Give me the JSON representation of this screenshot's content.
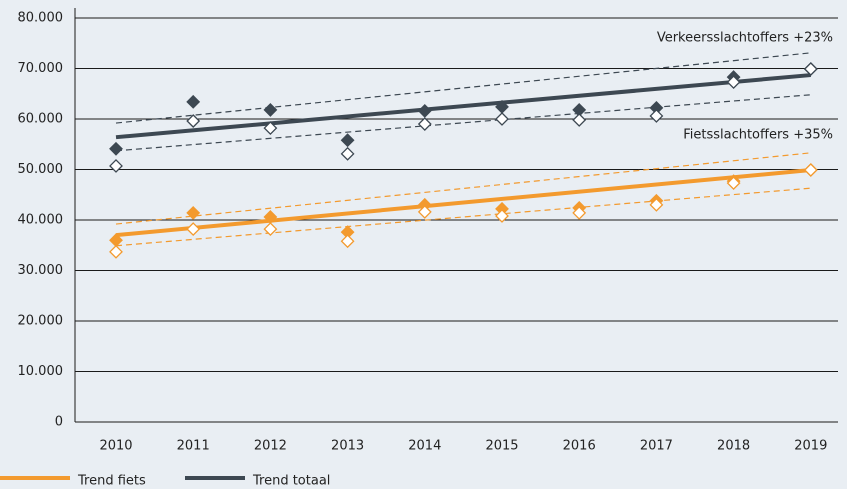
{
  "chart_data": {
    "type": "trend_scatter",
    "categories": [
      "2010",
      "2011",
      "2012",
      "2013",
      "2014",
      "2015",
      "2016",
      "2017",
      "2018",
      "2019"
    ],
    "ylim": [
      0,
      80000
    ],
    "yticks": [
      0,
      {
        "value": 10000,
        "label": "10.000"
      },
      {
        "value": 20000,
        "label": "20.000"
      },
      {
        "value": 30000,
        "label": "30.000"
      },
      {
        "value": 40000,
        "label": "40.000"
      },
      {
        "value": 50000,
        "label": "50.000"
      },
      {
        "value": 60000,
        "label": "60.000"
      },
      {
        "value": 70000,
        "label": "70.000"
      },
      {
        "value": 80000,
        "label": "80.000"
      }
    ],
    "grid": true,
    "series": [
      {
        "color": "#3d4852",
        "filled": true,
        "values": [
          54100,
          63400,
          61800,
          55800,
          61600,
          62400,
          61800,
          62200,
          68300,
          69900
        ]
      },
      {
        "color": "#3d4852",
        "filled": false,
        "values": [
          50700,
          59600,
          58200,
          53100,
          59000,
          60000,
          59800,
          60600,
          67300,
          69900
        ]
      },
      {
        "color": "#f39a2e",
        "filled": true,
        "values": [
          36000,
          41400,
          40600,
          37600,
          43000,
          42200,
          42400,
          43800,
          47700,
          49900
        ]
      },
      {
        "color": "#f39a2e",
        "filled": false,
        "values": [
          33700,
          38200,
          38200,
          35800,
          41600,
          40800,
          41400,
          43000,
          47300,
          49900
        ]
      }
    ],
    "trends": [
      {
        "name": "Trend fiets",
        "color": "#f39a2e",
        "values": [
          37000,
          49900
        ],
        "upper": [
          39200,
          53300
        ],
        "lower": [
          34900,
          46300
        ]
      },
      {
        "name": "Trend totaal",
        "color": "#3d4852",
        "values": [
          56400,
          68700
        ],
        "upper": [
          59200,
          73100
        ],
        "lower": [
          53700,
          64800
        ]
      }
    ],
    "annotations": [
      "Verkeersslachtoffers +23%",
      "Fietsslachtoffers +35%"
    ]
  }
}
